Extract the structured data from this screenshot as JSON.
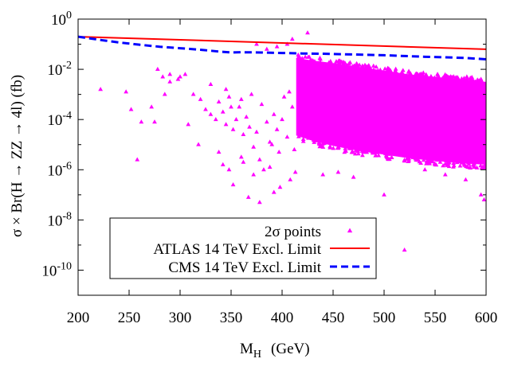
{
  "chart_data": {
    "type": "scatter",
    "xlabel": "M",
    "xlabel_sub": "H",
    "xlabel_unit": "(GeV)",
    "ylabel": "σ × Br(H → ZZ → 4l)  (fb)",
    "x_range": [
      200,
      600
    ],
    "y_log_range": [
      -11,
      0
    ],
    "x_ticks": [
      "200",
      "250",
      "300",
      "350",
      "400",
      "450",
      "500",
      "550",
      "600"
    ],
    "y_ticks": [
      {
        "base": "10",
        "exp": "0",
        "log": 0
      },
      {
        "base": "10",
        "exp": "-2",
        "log": -2
      },
      {
        "base": "10",
        "exp": "-4",
        "log": -4
      },
      {
        "base": "10",
        "exp": "-6",
        "log": -6
      },
      {
        "base": "10",
        "exp": "-8",
        "log": -8
      },
      {
        "base": "10",
        "exp": "-10",
        "log": -10
      }
    ],
    "legend": {
      "scatter": "2σ points",
      "atlas": "ATLAS 14 TeV Excl. Limit",
      "cms": "CMS 14 TeV Excl. Limit"
    },
    "colors": {
      "scatter": "#ff00ff",
      "atlas": "#ff0000",
      "cms": "#0000ff"
    },
    "series": [
      {
        "name": "ATLAS 14 TeV Excl. Limit",
        "style": "solid",
        "x": [
          200,
          600
        ],
        "log10_y": [
          -0.7,
          -1.2
        ]
      },
      {
        "name": "CMS 14 TeV Excl. Limit",
        "style": "dashed",
        "x": [
          200,
          220,
          240,
          260,
          280,
          300,
          320,
          340,
          350,
          360,
          380,
          400,
          420,
          440,
          460,
          480,
          500,
          520,
          540,
          560,
          580,
          600
        ],
        "log10_y": [
          -0.7,
          -0.82,
          -0.93,
          -1.02,
          -1.1,
          -1.16,
          -1.22,
          -1.3,
          -1.33,
          -1.32,
          -1.33,
          -1.35,
          -1.37,
          -1.38,
          -1.4,
          -1.42,
          -1.44,
          -1.47,
          -1.5,
          -1.52,
          -1.55,
          -1.6
        ]
      },
      {
        "name": "2σ points (dense band)",
        "type": "band",
        "x": [
          415,
          430,
          450,
          475,
          500,
          525,
          550,
          575,
          600
        ],
        "log10_y_upper": [
          -1.6,
          -1.7,
          -1.8,
          -1.95,
          -2.1,
          -2.25,
          -2.35,
          -2.45,
          -2.55
        ],
        "log10_y_lower": [
          -4.6,
          -4.8,
          -5.0,
          -5.2,
          -5.35,
          -5.5,
          -5.6,
          -5.7,
          -5.75
        ]
      },
      {
        "name": "2σ points (sparse)",
        "type": "scatter",
        "x": [
          222,
          247,
          258,
          275,
          278,
          283,
          290,
          298,
          305,
          313,
          320,
          325,
          330,
          335,
          338,
          342,
          345,
          348,
          350,
          352,
          355,
          358,
          360,
          362,
          365,
          368,
          370,
          372,
          375,
          378,
          380,
          382,
          385,
          388,
          390,
          392,
          395,
          397,
          400,
          402,
          405,
          407,
          410,
          412,
          425,
          520,
          598,
          595,
          580,
          560,
          540,
          500,
          470,
          455,
          440,
          385,
          375,
          395,
          405,
          410,
          345,
          330,
          318,
          308,
          300,
          290,
          285,
          272,
          262,
          252,
          360,
          372,
          388,
          398,
          408,
          413,
          367,
          352,
          342,
          338,
          378,
          392,
          348,
          362
        ],
        "log10_y": [
          -2.8,
          -2.9,
          -5.6,
          -4.1,
          -2.0,
          -2.3,
          -2.5,
          -2.4,
          -2.2,
          -3.0,
          -3.2,
          -3.6,
          -3.8,
          -4.0,
          -3.3,
          -3.7,
          -4.2,
          -3.1,
          -3.5,
          -4.4,
          -4.0,
          -3.5,
          -3.2,
          -4.6,
          -3.9,
          -4.3,
          -3.0,
          -5.1,
          -4.5,
          -5.6,
          -3.4,
          -6.0,
          -4.1,
          -4.9,
          -5.0,
          -3.8,
          -4.4,
          -5.3,
          -4.0,
          -3.1,
          -4.7,
          -2.9,
          -3.5,
          -5.2,
          -0.55,
          -9.2,
          -7.2,
          -7.0,
          -6.4,
          -6.2,
          -6.0,
          -7.0,
          -6.3,
          -6.1,
          -6.2,
          -1.2,
          -1.0,
          -1.1,
          -1.0,
          -0.8,
          -2.8,
          -2.6,
          -5.0,
          -4.2,
          -2.3,
          -2.2,
          -3.0,
          -3.5,
          -4.1,
          -3.6,
          -5.5,
          -6.2,
          -5.9,
          -6.7,
          -6.4,
          -6.1,
          -7.1,
          -6.6,
          -5.8,
          -5.3,
          -7.3,
          -6.9,
          -6.0,
          -5.7
        ]
      }
    ]
  }
}
